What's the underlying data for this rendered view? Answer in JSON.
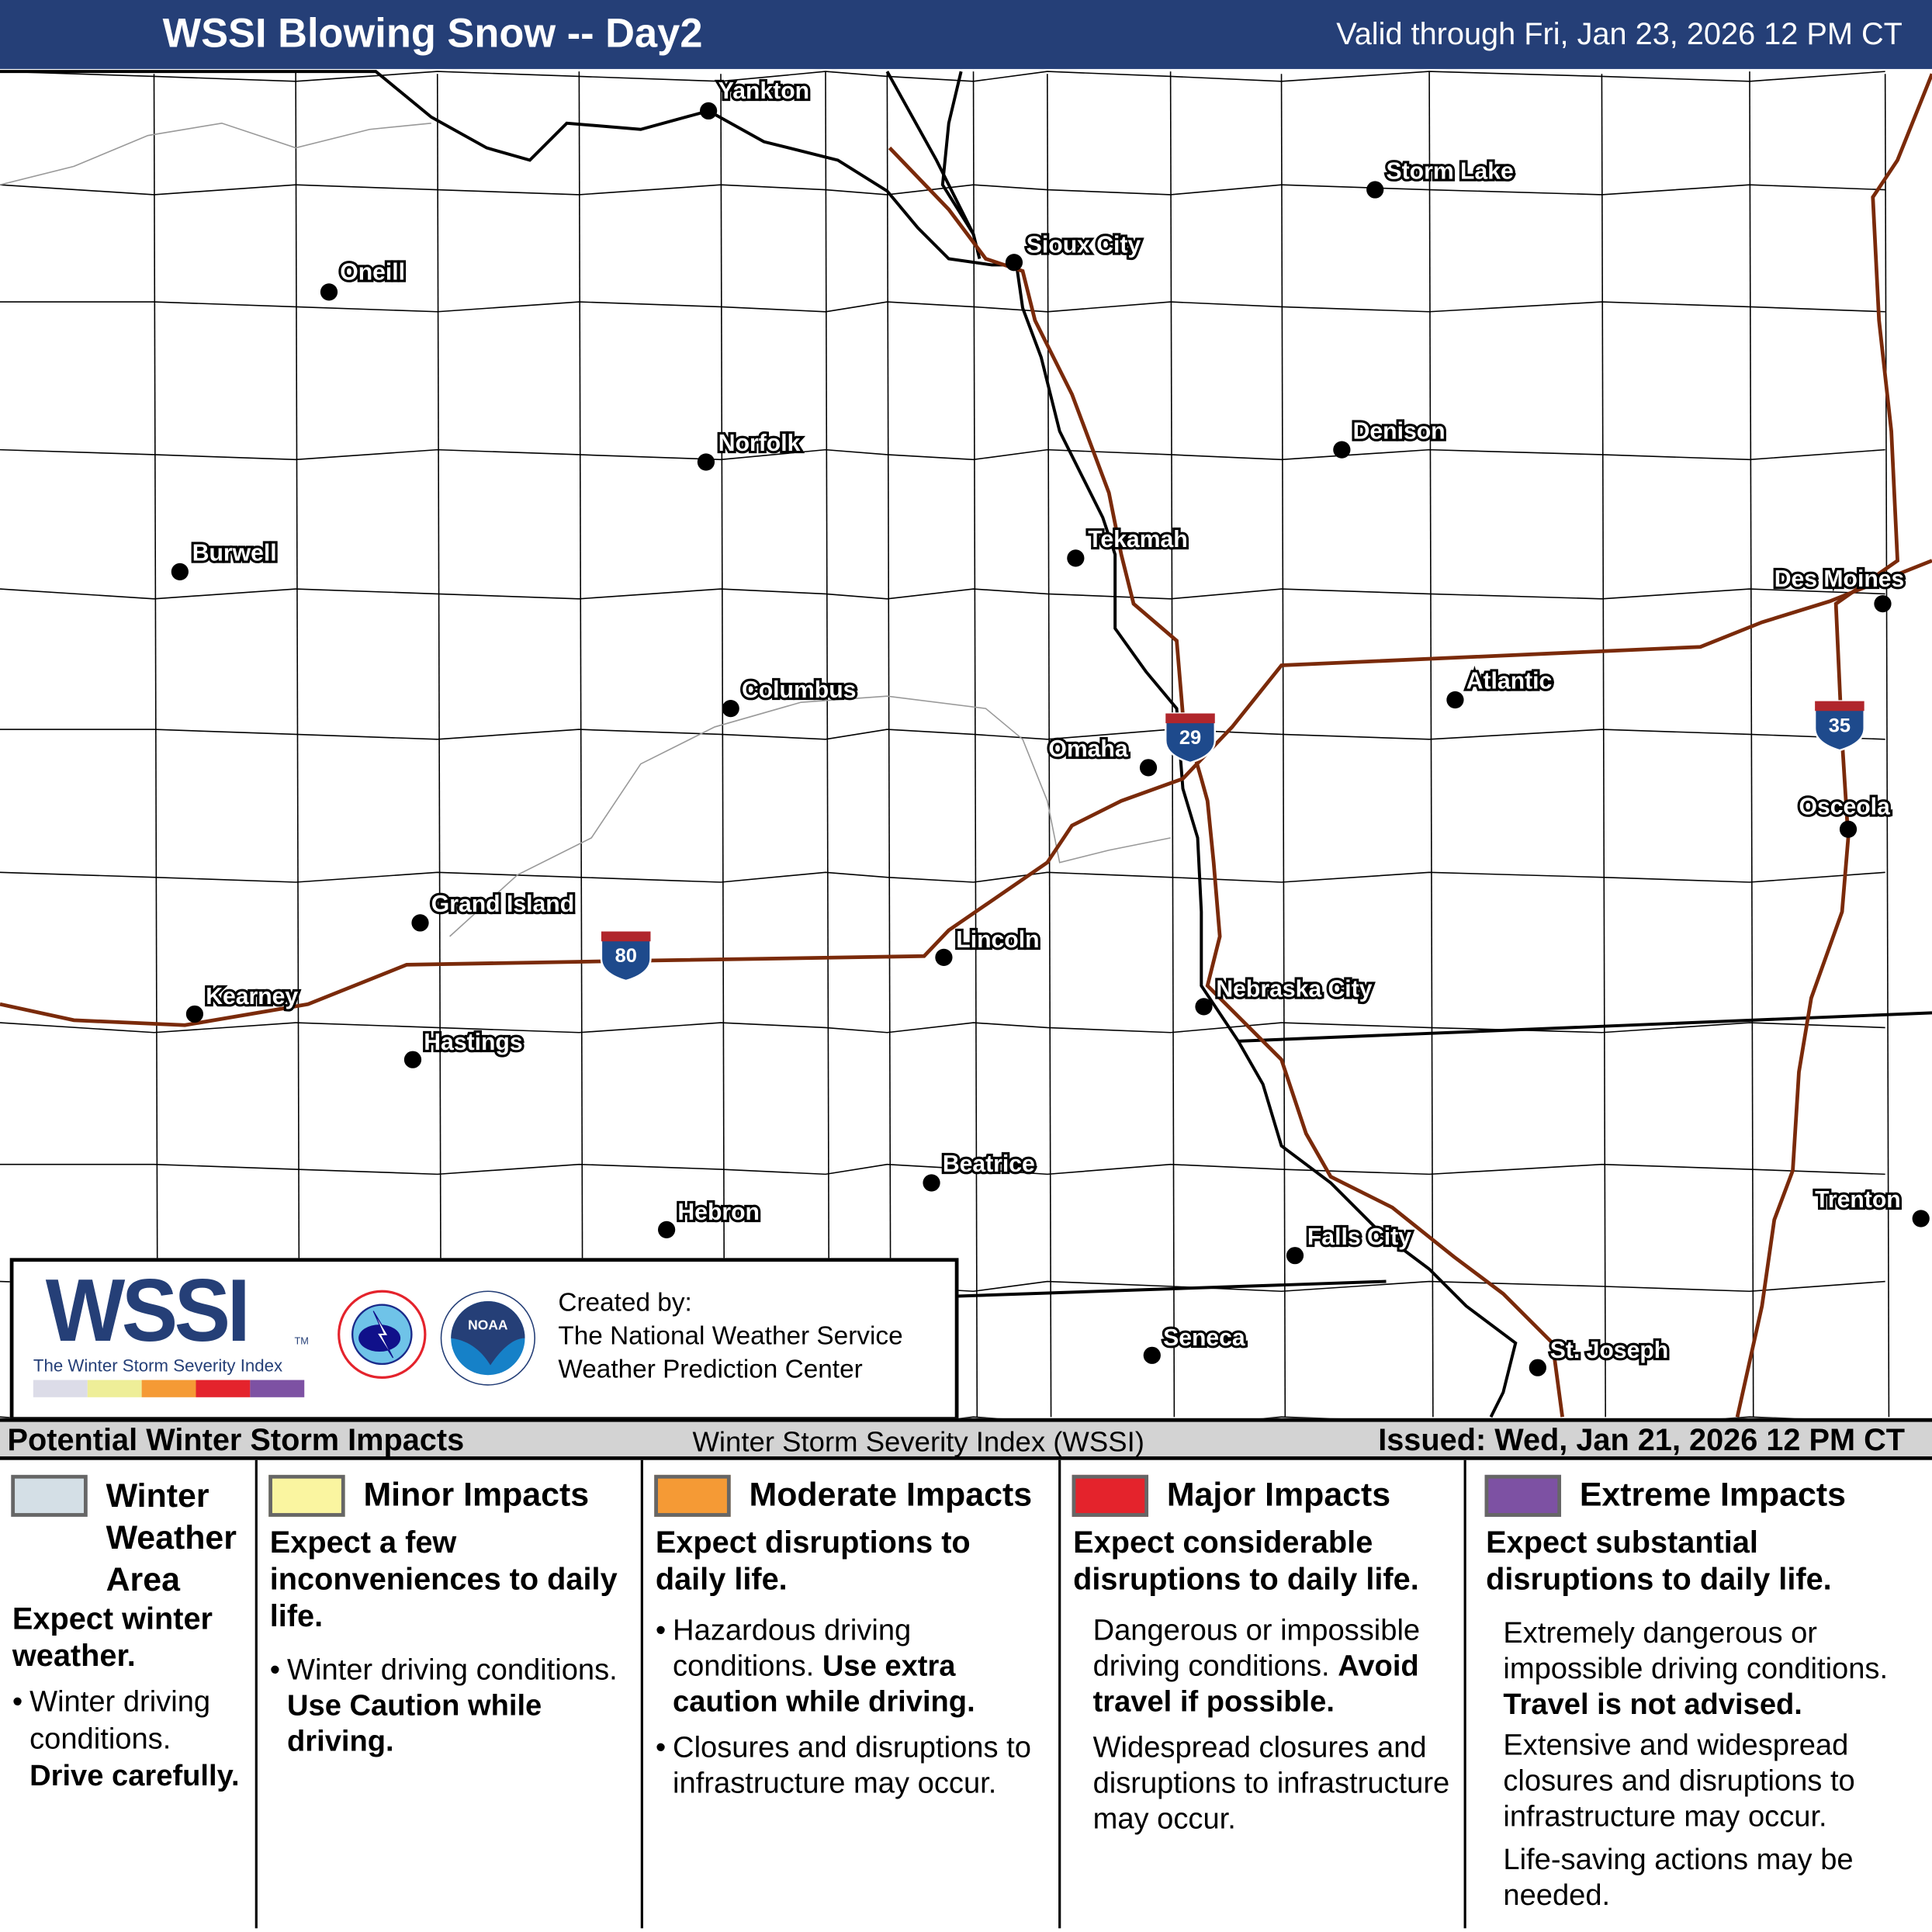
{
  "header": {
    "title": "WSSI Blowing Snow -- Day2",
    "valid": "Valid through Fri, Jan 23, 2026 12 PM CT",
    "bg_color": "#253f77"
  },
  "map": {
    "cities": [
      "Yankton",
      "Storm Lake",
      "Sioux City",
      "Oneill",
      "Norfolk",
      "Denison",
      "Burwell",
      "Tekamah",
      "Des Moines",
      "Atlantic",
      "Columbus",
      "Omaha",
      "Osceola",
      "Grand Island",
      "Lincoln",
      "Kearney",
      "Nebraska City",
      "Hastings",
      "Beatrice",
      "Trenton",
      "Hebron",
      "Falls City",
      "Seneca",
      "St. Joseph"
    ],
    "interstates": [
      "29",
      "80",
      "35"
    ],
    "colors": {
      "interstate_line": "#7a2a0a",
      "shield_blue": "#1e4a8c",
      "shield_red": "#b0262c"
    }
  },
  "logo": {
    "wssi": "WSSI",
    "tm": "TM",
    "subtitle": "The Winter Storm Severity Index",
    "strip_colors": [
      "#dcdce8",
      "#eeee98",
      "#f59a35",
      "#e4232c",
      "#7d51a3"
    ],
    "nws_icon": "nws-logo",
    "noaa_text": "NOAA",
    "credit_1": "Created by:",
    "credit_2": "The National Weather Service",
    "credit_3": "Weather Prediction Center"
  },
  "bar": {
    "left": "Potential Winter Storm Impacts",
    "middle": "Winter Storm Severity Index (WSSI)",
    "right": "Issued: Wed, Jan 21, 2026 12 PM CT"
  },
  "legend": [
    {
      "title": "Winter Weather Area",
      "title_lines": [
        "Winter",
        "Weather",
        "Area"
      ],
      "color": "#d4dfe6",
      "summary": "Expect winter weather.",
      "text": "Winter driving conditions.",
      "bold": "Drive carefully."
    },
    {
      "title": "Minor Impacts",
      "color": "#faf5a0",
      "summary": "Expect a few inconveniences to daily life.",
      "text": "Winter driving conditions.",
      "bold": "Use Caution while driving."
    },
    {
      "title": "Moderate Impacts",
      "color": "#f59a35",
      "summary": "Expect disruptions to daily life.",
      "text": "Hazardous driving conditions.",
      "bold": "Use extra caution while driving.",
      "text2": "Closures and disruptions to infrastructure may occur."
    },
    {
      "title": "Major Impacts",
      "color": "#e4232c",
      "summary": "Expect considerable disruptions to daily life.",
      "text": "Dangerous or impossible driving conditions.",
      "bold": "Avoid travel if possible.",
      "text2": "Widespread closures and disruptions to infrastructure may occur."
    },
    {
      "title": "Extreme Impacts",
      "color": "#7d51a3",
      "summary": "Expect substantial disruptions to daily life.",
      "text": "Extremely dangerous or impossible driving conditions.",
      "bold": "Travel is not advised.",
      "text2": "Extensive and widespread closures and disruptions to infrastructure may occur.",
      "text3": "Life-saving actions may be needed."
    }
  ]
}
